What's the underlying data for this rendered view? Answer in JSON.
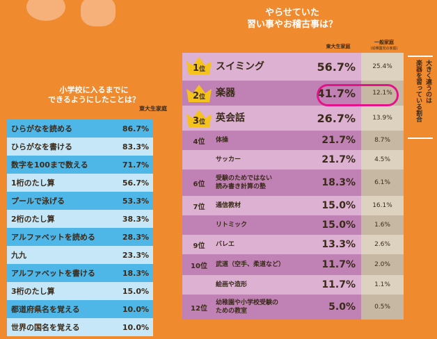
{
  "left": {
    "title_line1": "小学校に入るまでに",
    "title_line2": "できるようにしたことは？",
    "subtitle": "東大生家庭",
    "rows": [
      {
        "label": "ひらがなを読める",
        "value": "86.7%"
      },
      {
        "label": "ひらがなを書ける",
        "value": "83.3%"
      },
      {
        "label": "数字を100まで数える",
        "value": "71.7%"
      },
      {
        "label": "1桁のたし算",
        "value": "56.7%"
      },
      {
        "label": "プールで泳げる",
        "value": "53.3%"
      },
      {
        "label": "2桁のたし算",
        "value": "38.3%"
      },
      {
        "label": "アルファベットを読める",
        "value": "28.3%"
      },
      {
        "label": "九九",
        "value": "23.3%"
      },
      {
        "label": "アルファベットを書ける",
        "value": "18.3%"
      },
      {
        "label": "3桁のたし算",
        "value": "15.0%"
      },
      {
        "label": "都道府県名を覚える",
        "value": "10.0%"
      },
      {
        "label": "世界の国名を覚える",
        "value": "10.0%"
      }
    ]
  },
  "right": {
    "title_line1": "やらせていた",
    "title_line2": "習い事やお稽古事は？",
    "col1_header": "東大生家庭",
    "col2_header": "一般家庭",
    "col2_sub": "(幼稚園児の家庭)",
    "sidebar_line1": "大きく違うのは",
    "sidebar_line2": "楽器を習っている割合",
    "rows": [
      {
        "rank": "1",
        "rank_suffix": "位",
        "label": "スイミング",
        "value": "56.7%",
        "general": "25.4%"
      },
      {
        "rank": "2",
        "rank_suffix": "位",
        "label": "楽器",
        "value": "41.7%",
        "general": "12.1%"
      },
      {
        "rank": "3",
        "rank_suffix": "位",
        "label": "英会話",
        "value": "26.7%",
        "general": "13.9%"
      },
      {
        "rank": "4位",
        "label": "体操",
        "value": "21.7%",
        "general": "8.7%"
      },
      {
        "rank": "",
        "label": "サッカー",
        "value": "21.7%",
        "general": "4.5%"
      },
      {
        "rank": "6位",
        "label": "受験のためではない\n読み書き計算の塾",
        "value": "18.3%",
        "general": "6.1%"
      },
      {
        "rank": "7位",
        "label": "通信教材",
        "value": "15.0%",
        "general": "16.1%"
      },
      {
        "rank": "",
        "label": "リトミック",
        "value": "15.0%",
        "general": "1.6%"
      },
      {
        "rank": "9位",
        "label": "バレエ",
        "value": "13.3%",
        "general": "2.6%"
      },
      {
        "rank": "10位",
        "label": "武道（空手、柔道など）",
        "value": "11.7%",
        "general": "2.0%"
      },
      {
        "rank": "",
        "label": "絵画や造形",
        "value": "11.7%",
        "general": "1.1%"
      },
      {
        "rank": "12位",
        "label": "幼稚園や小学校受験の\nための教室",
        "value": "5.0%",
        "general": "0.5%"
      }
    ]
  },
  "colors": {
    "background": "#f08a2e",
    "blue": "#4fb6e8",
    "light_blue": "#c6e7f7",
    "pink": "#dcb1d2",
    "magenta": "#c081b4",
    "highlight": "#e6128a",
    "crown": "#f4c21a"
  }
}
